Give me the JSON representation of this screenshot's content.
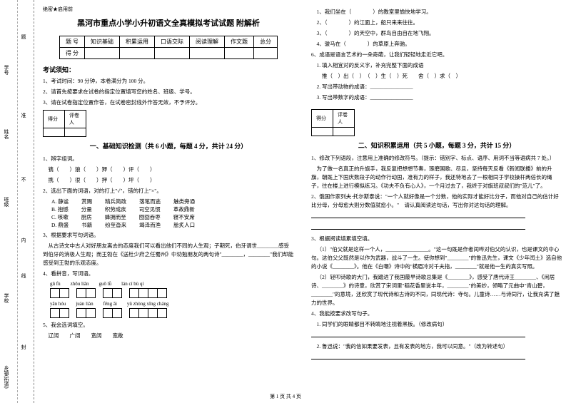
{
  "sidebar": {
    "labels": [
      "乡镇(街道)",
      "封",
      "学校",
      "线",
      "内",
      "班级",
      "不",
      "姓名",
      "准",
      "学号",
      "题"
    ]
  },
  "header": {
    "secret": "绝密★启用前"
  },
  "title": "黑河市重点小学小升初语文全真模拟考试试题 附解析",
  "scoreTable": {
    "headers": [
      "题 号",
      "知识基础",
      "积累运用",
      "口语交际",
      "阅读理解",
      "作文题",
      "总分"
    ],
    "row2": "得 分"
  },
  "notice": {
    "title": "考试须知：",
    "items": [
      "1、考试时间：90 分钟，本卷满分为 100 分。",
      "2、请首先按要求在试卷的指定位置填写您的姓名、班级、学号。",
      "3、请在试卷指定位置作答，在试卷密封线外作答无效，不予评分。"
    ]
  },
  "scoreBox": {
    "c1": "得分",
    "c2": "评卷人"
  },
  "section1": {
    "title": "一、基础知识检测（共 6 小题，每题 4 分，共计 24 分）",
    "q1": "1、辨字组词。",
    "q1_rows": [
      "镌（　　）狼（　　）狎（　　）评（　　）",
      "携（　　）很（　　）押（　　）坪（　　）"
    ],
    "q2": "2、选出下面的词语，对的打上\"√\"，错的打上\"×\"。",
    "q2_opts": [
      [
        "A. 静谧",
        "赏赐",
        "精兵简政",
        "落笔而逃",
        "触类旁通"
      ],
      [
        "B. 抱憾",
        "分量",
        "积劳成疾",
        "司空见惯",
        "革故鼎新"
      ],
      [
        "C. 咳嗽",
        "厨房",
        "蜂拥而至",
        "囫囵吞枣",
        "寝不安席"
      ],
      [
        "D. 鼎盛",
        "书籍",
        "纷至沓来",
        "竭泽而渔",
        "脍炙人口"
      ]
    ],
    "q3": "3、根据要求写句词语。",
    "q3_text": "从古诗文中古人对好朋友离去的态度我们可以看出他们不同的人生观；子期死，伯牙谓世________感受到伯牙的消极人生观；而王勃在《送杜少府之任蜀州》中劝勉朋友的两句诗\"________，________\"我们却能感受到王勃的乐观态度。",
    "q4": "4、看拼音，写词语。",
    "pinyin1": [
      "gū  fù",
      "zhōu liǎn",
      "guō  lǜ",
      "lán  cí  bù  qí"
    ],
    "pinyin2": [
      "yān  hóu",
      "juàn liàn",
      "fēng  āi",
      "yǔ zhòng xīng cháng"
    ],
    "boxes1": [
      2,
      2,
      2,
      4
    ],
    "boxes2": [
      2,
      2,
      2,
      4
    ],
    "q5": "5、我会选词填空。",
    "q5_opts": "辽阔　　广阔　　宽阔　　宽敞"
  },
  "colR": {
    "lines": [
      "1、我们坐在（　　　　）的教室里愉快地学习。",
      "2、（　　　　）的江面上，船只来来往往。",
      "3、（　　　　）的天空中，群鸟自由自在地飞翔。",
      "4、骏马在（　　　　）的草原上奔驰。"
    ],
    "q6": "6、成语是语言艺术的一朵奇葩，让我们轻轻地走近它吧。",
    "q6_1": "1. 填入相宜对的反义字，补充完整下面的成语",
    "q6_1_text": "推（　）出（　）　（　）生（　）死　　舍（　）求（　）",
    "q6_2": "2. 写出带动物的成语：________________",
    "q6_3": "3. 写出带数字的成语：________________"
  },
  "section2": {
    "title": "二、知识积累运用（共 5 小题，每题 3 分，共计 15 分）",
    "q1": "1、修改下列语段，注意用上准确的修改符号。（提示：错别字、标点、语序、用词不当等语病共 7 处。）",
    "q1_text": "为了做一名真正的升旗手，我反复把想想节奏，琢磨国歌、尽且，坚持每天反看《新闻联播》前的升旗，朝既上下国庆数段子的动作行动国，准有力的样子，我还特地去了一根相同于学校操杆两倍长的绳子，往在楼上进行模拟练习。《功夫不负有心人》，一个月过去了，我终于对旗班叔叔们的\"范儿\"了。",
    "q2": "2、俄国作家列夫·托尔斯泰说：\"一个人就好像是一个分数，他的实际才能好比分子，而他对自己的估计好比分母，分母愈大则分数值就愈小。\"　请认真阅读这句话，写出你对这句话的理解。",
    "q3": "3、根据阅读填累填空填。",
    "q3_1": "（1）\"伯父就是这样一个人，________________。\"这一句既是作者闰哗对伯父的认识，也是课文的中心句。这伯父父既然是以作为武器，战斗了一生。使你想到\"________\"的鲁迅先生，课文《少年闰土》选自他的小说《________》。他在《白嘲》诗中的\"横眉冷对千夫指，________\"就是他一生的真实写照。",
    "q3_2": "（2）轻叩诗歌的大门，我踏进了我国最早诗歌总集是《________》，感受了唐代诗王________、《闲居诗、________》的诗意，欣赏了宋词里\"稻花香里说丰年，________\"的美妙，领略了元曲中\"青山碧，________\"的意境，还欣赏了现代诗和古诗的不同，同现代诗：寺句。儿童诗……与诗同行，让我充满了魅力的世界。",
    "q4": "4、我能按要求改写句子。",
    "q4_1": "1. 同学们的眼睛都目不转睛地注视着黑板。（修改病句）",
    "q4_2": "2. 鲁迅说：\"我的信如果要发表，且有发表的地方，我可以同意。\"（改为转述句）"
  },
  "footer": "第 1 页 共 4 页"
}
